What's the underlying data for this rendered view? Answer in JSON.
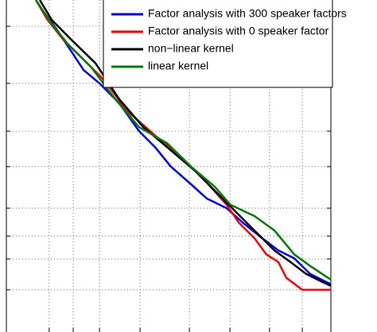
{
  "chart_data": {
    "type": "line",
    "xlim": [
      0,
      100
    ],
    "ylim": [
      0,
      100
    ],
    "xticks": [
      13.2,
      20.6,
      28.7,
      41.2,
      56.4,
      68.9,
      81.1,
      91.2
    ],
    "yticks": [
      12.7,
      22.0,
      28.9,
      37.3,
      49.8,
      60.5,
      74.9,
      92.1
    ],
    "grid": true,
    "legend": "upper right",
    "series": [
      {
        "name": "Factor analysis with 300 speaker factors",
        "color": "#0000ff",
        "x": [
          9.1,
          11.5,
          15.2,
          20.1,
          23.8,
          28.7,
          34.8,
          40.9,
          45.8,
          50.7,
          56.9,
          61.8,
          67.9,
          72.8,
          78.9,
          83.8,
          88.7,
          93.6,
          98.5,
          100
        ],
        "values": [
          100,
          96.4,
          91.6,
          84.4,
          78.9,
          74.9,
          68.9,
          60.5,
          55.7,
          49.8,
          44.5,
          40.2,
          37.3,
          33.0,
          28.2,
          24.6,
          22.2,
          17.5,
          15.1,
          14.4
        ]
      },
      {
        "name": "Factor analysis with 0 speaker factor",
        "color": "#ff0000",
        "x": [
          9.1,
          12.7,
          17.6,
          22.5,
          29.9,
          37.3,
          47.1,
          54.4,
          61.8,
          67.9,
          71.6,
          76.5,
          80.1,
          83.8,
          86.3,
          91.2,
          100
        ],
        "values": [
          100,
          94.0,
          88.0,
          83.3,
          76.1,
          66.5,
          58.1,
          52.2,
          45.0,
          38.3,
          33.0,
          28.2,
          23.4,
          21.1,
          16.3,
          12.7,
          12.7
        ]
      },
      {
        "name": "non−linear kernel",
        "color": "#000000",
        "x": [
          10.3,
          14.0,
          20.1,
          27.5,
          34.8,
          42.2,
          49.5,
          58.1,
          65.4,
          70.3,
          75.2,
          78.9,
          82.6,
          87.5,
          92.4,
          97.3,
          100
        ],
        "values": [
          100,
          94.0,
          88.0,
          80.9,
          70.1,
          61.7,
          55.7,
          48.6,
          41.4,
          36.6,
          31.8,
          28.2,
          24.6,
          21.1,
          17.5,
          15.1,
          13.9
        ]
      },
      {
        "name": "linear kernel",
        "color": "#008000",
        "x": [
          9.1,
          14.0,
          18.9,
          26.2,
          33.6,
          40.9,
          49.5,
          56.9,
          64.2,
          69.1,
          76.5,
          82.6,
          88.7,
          93.6,
          98.5,
          100
        ],
        "values": [
          100,
          92.8,
          86.8,
          79.7,
          70.1,
          61.7,
          56.9,
          49.8,
          43.8,
          38.3,
          34.9,
          30.6,
          23.4,
          19.9,
          16.7,
          15.8
        ]
      }
    ]
  }
}
